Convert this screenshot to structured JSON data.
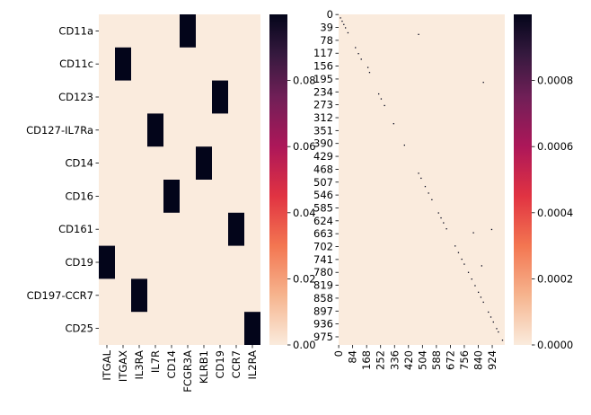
{
  "chart_data": [
    {
      "type": "heatmap",
      "rows": [
        "CD11a",
        "CD11c",
        "CD123",
        "CD127-IL7Ra",
        "CD14",
        "CD16",
        "CD161",
        "CD19",
        "CD197-CCR7",
        "CD25"
      ],
      "columns": [
        "ITGAL",
        "ITGAX",
        "IL3RA",
        "IL7R",
        "CD14",
        "FCGR3A",
        "KLRB1",
        "CD19",
        "CCR7",
        "IL2RA"
      ],
      "cells": [
        {
          "row": 0,
          "col": 5,
          "value": 0.1
        },
        {
          "row": 1,
          "col": 1,
          "value": 0.1
        },
        {
          "row": 2,
          "col": 7,
          "value": 0.1
        },
        {
          "row": 3,
          "col": 3,
          "value": 0.1
        },
        {
          "row": 4,
          "col": 6,
          "value": 0.1
        },
        {
          "row": 5,
          "col": 4,
          "value": 0.1
        },
        {
          "row": 6,
          "col": 8,
          "value": 0.1
        },
        {
          "row": 7,
          "col": 0,
          "value": 0.1
        },
        {
          "row": 8,
          "col": 2,
          "value": 0.1
        },
        {
          "row": 9,
          "col": 9,
          "value": 0.1
        }
      ],
      "background_value": 0.0,
      "colorbar": {
        "range": [
          0.0,
          0.1
        ],
        "ticks": [
          0.0,
          0.02,
          0.04,
          0.06,
          0.08
        ],
        "tick_labels": [
          "0.00",
          "0.02",
          "0.04",
          "0.06",
          "0.08"
        ]
      }
    },
    {
      "type": "heatmap",
      "n_rows": 1000,
      "n_cols": 1000,
      "y_tick_labels": [
        "0",
        "39",
        "78",
        "117",
        "156",
        "195",
        "234",
        "273",
        "312",
        "351",
        "390",
        "429",
        "468",
        "507",
        "546",
        "585",
        "624",
        "663",
        "702",
        "741",
        "780",
        "819",
        "858",
        "897",
        "936",
        "975"
      ],
      "x_tick_labels": [
        "0",
        "84",
        "168",
        "252",
        "336",
        "420",
        "504",
        "588",
        "672",
        "756",
        "840",
        "924"
      ],
      "dark_cells": [
        [
          10,
          10
        ],
        [
          20,
          20
        ],
        [
          30,
          30
        ],
        [
          40,
          40
        ],
        [
          55,
          55
        ],
        [
          60,
          480
        ],
        [
          100,
          100
        ],
        [
          118,
          118
        ],
        [
          135,
          135
        ],
        [
          160,
          175
        ],
        [
          175,
          185
        ],
        [
          205,
          870
        ],
        [
          240,
          240
        ],
        [
          255,
          255
        ],
        [
          275,
          275
        ],
        [
          330,
          330
        ],
        [
          395,
          395
        ],
        [
          480,
          480
        ],
        [
          495,
          495
        ],
        [
          520,
          520
        ],
        [
          540,
          540
        ],
        [
          560,
          560
        ],
        [
          600,
          600
        ],
        [
          615,
          615
        ],
        [
          630,
          630
        ],
        [
          648,
          648
        ],
        [
          650,
          920
        ],
        [
          660,
          810
        ],
        [
          700,
          700
        ],
        [
          720,
          720
        ],
        [
          740,
          740
        ],
        [
          755,
          755
        ],
        [
          760,
          860
        ],
        [
          780,
          780
        ],
        [
          800,
          800
        ],
        [
          820,
          820
        ],
        [
          840,
          840
        ],
        [
          855,
          855
        ],
        [
          870,
          870
        ],
        [
          900,
          900
        ],
        [
          915,
          915
        ],
        [
          930,
          930
        ],
        [
          950,
          950
        ],
        [
          960,
          960
        ],
        [
          985,
          985
        ]
      ],
      "colorbar": {
        "range": [
          0.0,
          0.001
        ],
        "ticks": [
          0.0,
          0.0002,
          0.0004,
          0.0006,
          0.0008
        ],
        "tick_labels": [
          "0.0000",
          "0.0002",
          "0.0004",
          "0.0006",
          "0.0008"
        ]
      }
    }
  ]
}
